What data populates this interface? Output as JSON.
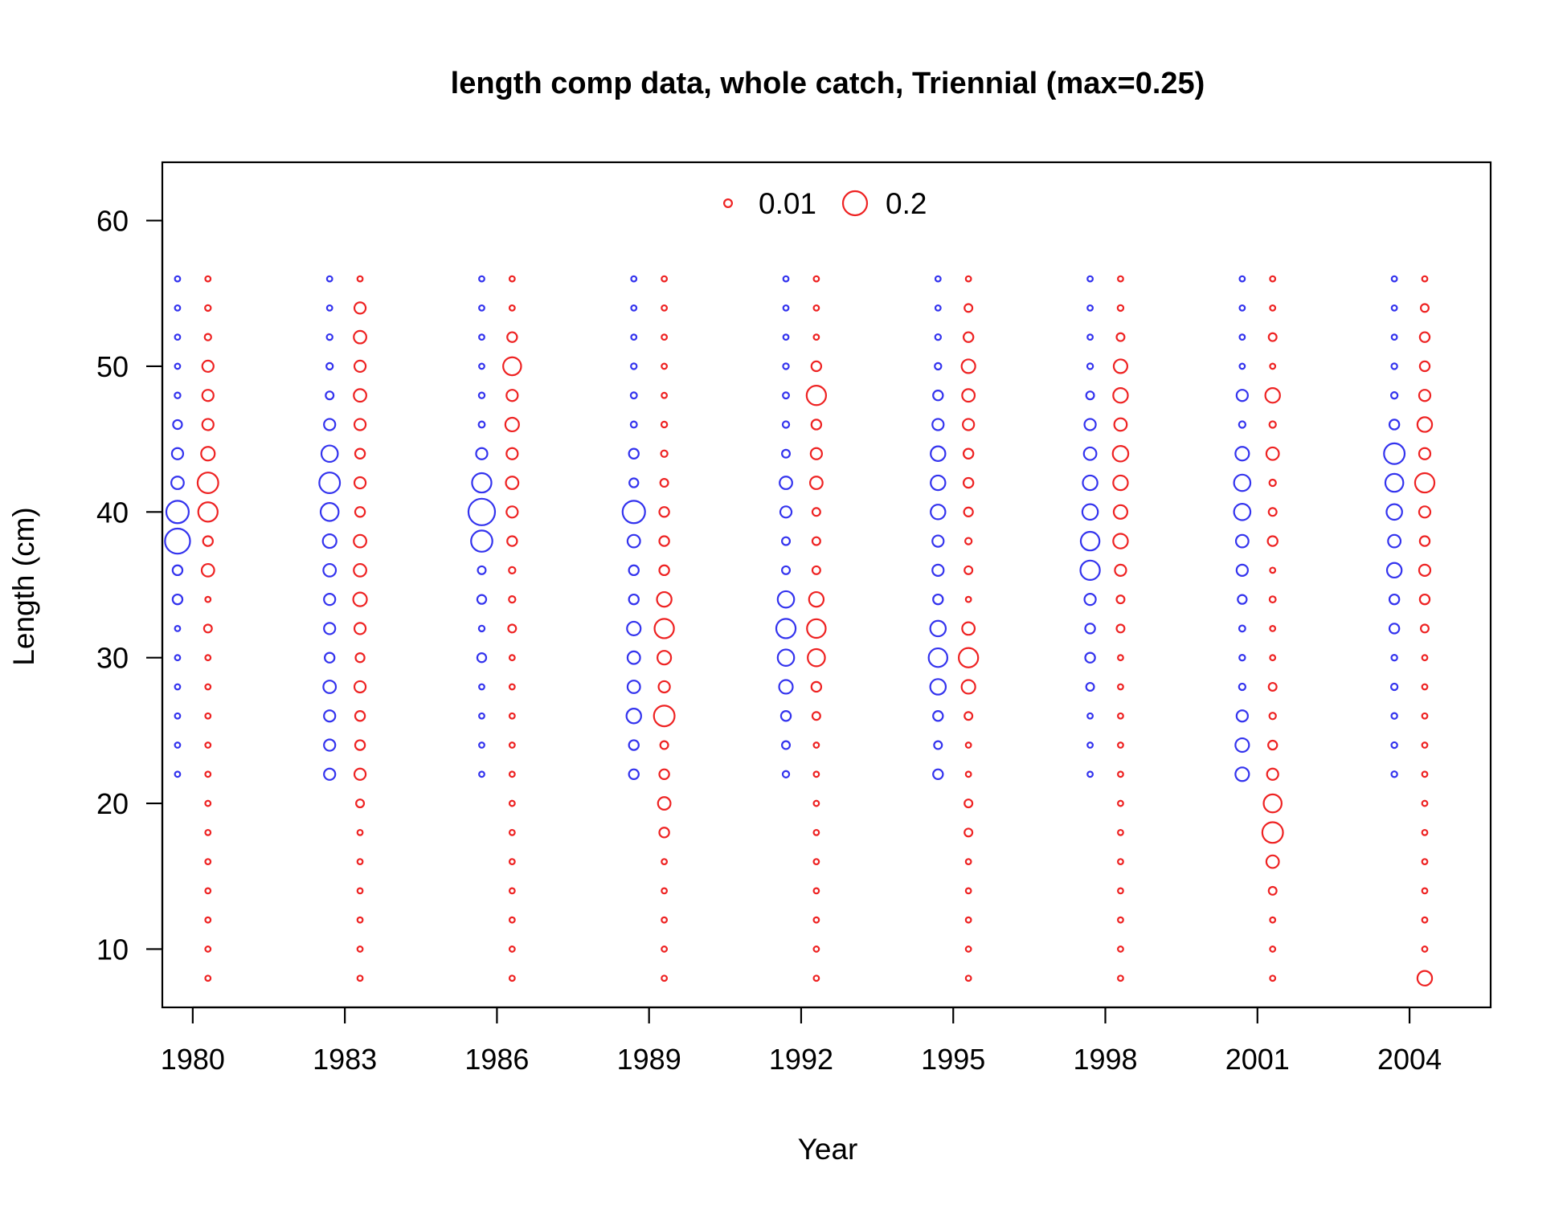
{
  "chart_data": {
    "type": "scatter",
    "title": "length comp data, whole catch, Triennial (max=0.25)",
    "xlabel": "Year",
    "ylabel": "Length (cm)",
    "xlim": [
      1979.4,
      2005.6
    ],
    "ylim": [
      6,
      64
    ],
    "xticks": [
      "1980",
      "1983",
      "1986",
      "1989",
      "1992",
      "1995",
      "1998",
      "2001",
      "2004"
    ],
    "yticks": [
      "10",
      "20",
      "30",
      "40",
      "50",
      "60"
    ],
    "grid": false,
    "legend": {
      "placement": "top-center",
      "entries": [
        {
          "label": "0.01",
          "value": 0.01
        },
        {
          "label": "0.2",
          "value": 0.2
        }
      ]
    },
    "max_proportion": 0.25,
    "colors": {
      "series_1": "#3333ee",
      "series_2": "#ee2222",
      "axis": "#000000"
    },
    "series": [
      {
        "color": "#3333ee",
        "offset_years": -0.3,
        "lengths": [
          22,
          24,
          26,
          28,
          30,
          32,
          34,
          36,
          38,
          40,
          42,
          44,
          46,
          48,
          50,
          52,
          54,
          56
        ],
        "years": [
          {
            "year": 1980,
            "values": [
              0.002,
              0.002,
              0.002,
              0.002,
              0.002,
              0.002,
              0.02,
              0.02,
              0.22,
              0.17,
              0.04,
              0.03,
              0.015,
              0.003,
              0.002,
              0.002,
              0.002,
              0.002
            ]
          },
          {
            "year": 1983,
            "values": [
              0.03,
              0.03,
              0.03,
              0.04,
              0.02,
              0.03,
              0.03,
              0.04,
              0.05,
              0.1,
              0.14,
              0.08,
              0.03,
              0.01,
              0.005,
              0.003,
              0.002,
              0.002
            ]
          },
          {
            "year": 1986,
            "values": [
              0.002,
              0.002,
              0.002,
              0.002,
              0.015,
              0.003,
              0.015,
              0.01,
              0.15,
              0.25,
              0.12,
              0.03,
              0.004,
              0.003,
              0.002,
              0.002,
              0.002,
              0.002
            ]
          },
          {
            "year": 1989,
            "values": [
              0.02,
              0.02,
              0.06,
              0.04,
              0.04,
              0.05,
              0.02,
              0.02,
              0.04,
              0.17,
              0.015,
              0.02,
              0.004,
              0.004,
              0.003,
              0.002,
              0.002,
              0.002
            ]
          },
          {
            "year": 1992,
            "values": [
              0.005,
              0.01,
              0.02,
              0.05,
              0.08,
              0.12,
              0.08,
              0.01,
              0.01,
              0.03,
              0.04,
              0.01,
              0.005,
              0.004,
              0.003,
              0.002,
              0.002,
              0.002
            ]
          },
          {
            "year": 1995,
            "values": [
              0.02,
              0.01,
              0.02,
              0.07,
              0.11,
              0.07,
              0.02,
              0.03,
              0.03,
              0.06,
              0.06,
              0.06,
              0.03,
              0.02,
              0.005,
              0.003,
              0.002,
              0.002
            ]
          },
          {
            "year": 1998,
            "values": [
              0.002,
              0.002,
              0.002,
              0.01,
              0.02,
              0.02,
              0.03,
              0.12,
              0.11,
              0.07,
              0.06,
              0.04,
              0.03,
              0.01,
              0.003,
              0.002,
              0.002,
              0.002
            ]
          },
          {
            "year": 2001,
            "values": [
              0.05,
              0.05,
              0.03,
              0.005,
              0.003,
              0.004,
              0.015,
              0.03,
              0.04,
              0.08,
              0.08,
              0.05,
              0.005,
              0.03,
              0.002,
              0.002,
              0.002,
              0.002
            ]
          },
          {
            "year": 2004,
            "values": [
              0.003,
              0.003,
              0.003,
              0.005,
              0.003,
              0.02,
              0.02,
              0.06,
              0.04,
              0.07,
              0.1,
              0.14,
              0.02,
              0.005,
              0.003,
              0.002,
              0.002,
              0.002
            ]
          }
        ]
      },
      {
        "color": "#ee2222",
        "offset_years": 0.3,
        "lengths": [
          8,
          10,
          12,
          14,
          16,
          18,
          20,
          22,
          24,
          26,
          28,
          30,
          32,
          34,
          36,
          38,
          40,
          42,
          44,
          46,
          48,
          50,
          52,
          54,
          56
        ],
        "years": [
          {
            "year": 1980,
            "values": [
              0.002,
              0.002,
              0.002,
              0.002,
              0.002,
              0.002,
              0.002,
              0.002,
              0.002,
              0.002,
              0.002,
              0.002,
              0.01,
              0.002,
              0.04,
              0.02,
              0.12,
              0.14,
              0.05,
              0.03,
              0.03,
              0.03,
              0.005,
              0.003,
              0.002
            ]
          },
          {
            "year": 1983,
            "values": [
              0.002,
              0.002,
              0.002,
              0.002,
              0.002,
              0.002,
              0.01,
              0.03,
              0.02,
              0.02,
              0.03,
              0.015,
              0.03,
              0.05,
              0.04,
              0.04,
              0.02,
              0.03,
              0.02,
              0.03,
              0.04,
              0.03,
              0.04,
              0.03,
              0.002
            ]
          },
          {
            "year": 1986,
            "values": [
              0.002,
              0.002,
              0.002,
              0.002,
              0.002,
              0.002,
              0.002,
              0.002,
              0.002,
              0.002,
              0.002,
              0.002,
              0.01,
              0.005,
              0.005,
              0.02,
              0.03,
              0.04,
              0.03,
              0.05,
              0.03,
              0.1,
              0.02,
              0.002,
              0.002
            ]
          },
          {
            "year": 1989,
            "values": [
              0.002,
              0.002,
              0.002,
              0.002,
              0.002,
              0.02,
              0.04,
              0.02,
              0.01,
              0.14,
              0.03,
              0.05,
              0.12,
              0.06,
              0.02,
              0.02,
              0.02,
              0.01,
              0.005,
              0.003,
              0.002,
              0.002,
              0.002,
              0.002,
              0.002
            ]
          },
          {
            "year": 1992,
            "values": [
              0.002,
              0.002,
              0.002,
              0.002,
              0.002,
              0.002,
              0.002,
              0.002,
              0.002,
              0.01,
              0.02,
              0.09,
              0.11,
              0.06,
              0.01,
              0.01,
              0.01,
              0.04,
              0.03,
              0.02,
              0.12,
              0.02,
              0.002,
              0.002,
              0.002
            ]
          },
          {
            "year": 1995,
            "values": [
              0.002,
              0.002,
              0.002,
              0.002,
              0.002,
              0.01,
              0.01,
              0.002,
              0.002,
              0.01,
              0.05,
              0.12,
              0.04,
              0.002,
              0.01,
              0.005,
              0.015,
              0.02,
              0.02,
              0.03,
              0.04,
              0.05,
              0.02,
              0.01,
              0.002
            ]
          },
          {
            "year": 1998,
            "values": [
              0.002,
              0.002,
              0.002,
              0.002,
              0.002,
              0.002,
              0.002,
              0.002,
              0.002,
              0.002,
              0.002,
              0.002,
              0.01,
              0.01,
              0.03,
              0.06,
              0.05,
              0.06,
              0.07,
              0.04,
              0.06,
              0.05,
              0.01,
              0.003,
              0.002
            ]
          },
          {
            "year": 2001,
            "values": [
              0.002,
              0.002,
              0.002,
              0.01,
              0.04,
              0.14,
              0.1,
              0.03,
              0.015,
              0.005,
              0.01,
              0.002,
              0.002,
              0.004,
              0.002,
              0.02,
              0.01,
              0.005,
              0.04,
              0.005,
              0.06,
              0.002,
              0.01,
              0.002,
              0.002
            ]
          },
          {
            "year": 2004,
            "values": [
              0.06,
              0.002,
              0.002,
              0.002,
              0.002,
              0.002,
              0.002,
              0.002,
              0.002,
              0.002,
              0.002,
              0.002,
              0.01,
              0.02,
              0.03,
              0.02,
              0.03,
              0.12,
              0.03,
              0.06,
              0.03,
              0.02,
              0.02,
              0.01,
              0.002
            ]
          }
        ]
      }
    ]
  }
}
